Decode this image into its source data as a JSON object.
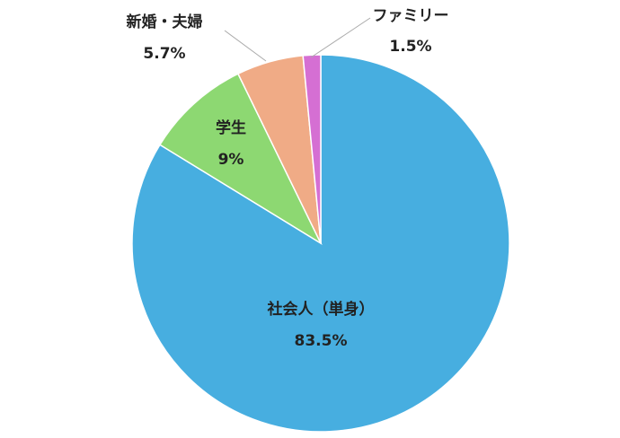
{
  "chart_data": {
    "type": "pie",
    "categories": [
      "社会人（単身）",
      "学生",
      "新婚・夫婦",
      "ファミリー"
    ],
    "values": [
      83.5,
      9,
      5.7,
      1.5
    ],
    "value_labels": [
      "83.5%",
      "9%",
      "5.7%",
      "1.5%"
    ],
    "colors": [
      "#47aee0",
      "#8dd872",
      "#f0ab86",
      "#d56fd3"
    ],
    "start_angle": 0,
    "direction": "clockwise"
  }
}
